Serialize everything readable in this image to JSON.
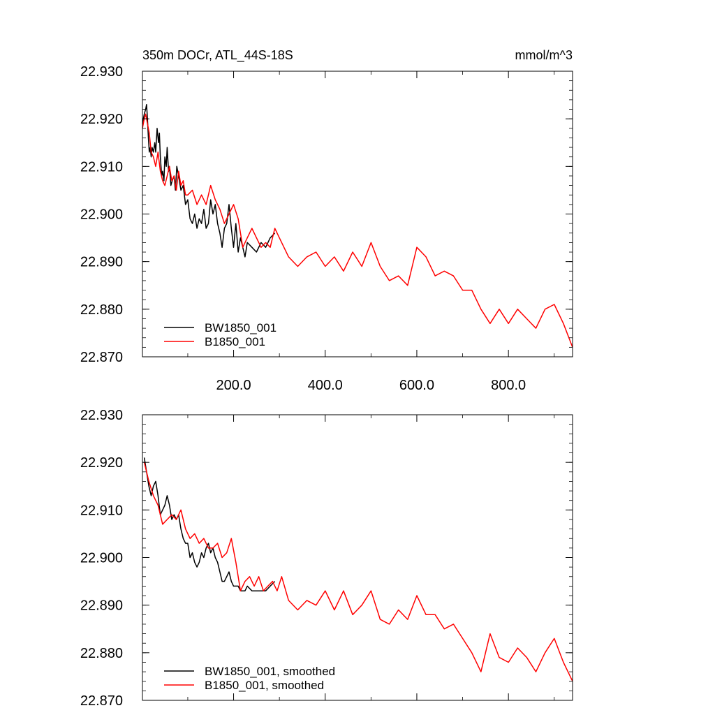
{
  "chart_data": [
    {
      "type": "line",
      "title_left": "350m DOCr, ATL_44S-18S",
      "title_right": "mmol/m^3",
      "xlim": [
        1,
        940
      ],
      "ylim": [
        22.87,
        22.93
      ],
      "yticks": [
        "22.930",
        "22.920",
        "22.910",
        "22.900",
        "22.890",
        "22.880",
        "22.870"
      ],
      "xticks": [
        "200.0",
        "400.0",
        "600.0",
        "800.0"
      ],
      "legend_position": "bottom-left",
      "series": [
        {
          "name": "BW1850_001",
          "color": "#000000",
          "x": [
            1,
            5,
            8,
            10,
            12,
            14,
            16,
            18,
            20,
            22,
            25,
            28,
            30,
            33,
            36,
            38,
            40,
            43,
            45,
            48,
            50,
            53,
            55,
            58,
            60,
            63,
            66,
            70,
            73,
            76,
            80,
            85,
            90,
            95,
            100,
            105,
            110,
            115,
            120,
            125,
            130,
            135,
            140,
            145,
            150,
            155,
            160,
            165,
            170,
            175,
            180,
            185,
            190,
            195,
            200,
            205,
            210,
            215,
            220,
            225,
            230,
            240,
            250,
            260,
            270,
            280,
            290
          ],
          "y": [
            22.919,
            22.921,
            22.922,
            22.923,
            22.92,
            22.916,
            22.913,
            22.914,
            22.912,
            22.914,
            22.913,
            22.915,
            22.913,
            22.918,
            22.915,
            22.917,
            22.912,
            22.908,
            22.909,
            22.907,
            22.912,
            22.91,
            22.914,
            22.909,
            22.91,
            22.906,
            22.907,
            22.908,
            22.905,
            22.91,
            22.908,
            22.905,
            22.906,
            22.902,
            22.903,
            22.899,
            22.898,
            22.9,
            22.897,
            22.899,
            22.898,
            22.901,
            22.897,
            22.898,
            22.903,
            22.9,
            22.902,
            22.898,
            22.896,
            22.893,
            22.897,
            22.898,
            22.902,
            22.897,
            22.893,
            22.898,
            22.892,
            22.895,
            22.893,
            22.891,
            22.894,
            22.893,
            22.892,
            22.894,
            22.893,
            22.895,
            22.896
          ]
        },
        {
          "name": "B1850_001",
          "color": "#ff0000",
          "x": [
            1,
            5,
            8,
            12,
            16,
            20,
            25,
            30,
            35,
            40,
            45,
            50,
            55,
            60,
            65,
            70,
            75,
            80,
            85,
            90,
            95,
            100,
            110,
            120,
            130,
            140,
            150,
            160,
            170,
            180,
            190,
            200,
            210,
            220,
            230,
            240,
            250,
            260,
            270,
            280,
            290,
            300,
            320,
            340,
            360,
            380,
            400,
            420,
            440,
            460,
            480,
            500,
            520,
            540,
            560,
            580,
            600,
            620,
            640,
            660,
            680,
            700,
            720,
            740,
            760,
            780,
            800,
            820,
            840,
            860,
            880,
            900,
            920,
            940
          ],
          "y": [
            22.918,
            22.92,
            22.921,
            22.919,
            22.917,
            22.913,
            22.912,
            22.91,
            22.913,
            22.909,
            22.907,
            22.906,
            22.908,
            22.91,
            22.907,
            22.908,
            22.905,
            22.909,
            22.906,
            22.907,
            22.904,
            22.904,
            22.905,
            22.902,
            22.904,
            22.902,
            22.906,
            22.903,
            22.901,
            22.898,
            22.9,
            22.902,
            22.899,
            22.893,
            22.895,
            22.897,
            22.895,
            22.893,
            22.894,
            22.893,
            22.897,
            22.895,
            22.891,
            22.889,
            22.891,
            22.892,
            22.889,
            22.891,
            22.888,
            22.892,
            22.889,
            22.894,
            22.889,
            22.886,
            22.887,
            22.885,
            22.893,
            22.891,
            22.887,
            22.888,
            22.887,
            22.884,
            22.884,
            22.88,
            22.877,
            22.88,
            22.877,
            22.88,
            22.878,
            22.876,
            22.88,
            22.881,
            22.877,
            22.872
          ]
        }
      ]
    },
    {
      "type": "line",
      "xlim": [
        1,
        940
      ],
      "ylim": [
        22.87,
        22.93
      ],
      "yticks": [
        "22.930",
        "22.920",
        "22.910",
        "22.900",
        "22.890",
        "22.880",
        "22.870"
      ],
      "legend_position": "bottom-left",
      "series": [
        {
          "name": "BW1850_001, smoothed",
          "color": "#000000",
          "x": [
            5,
            10,
            15,
            20,
            25,
            30,
            35,
            40,
            45,
            50,
            55,
            60,
            65,
            70,
            75,
            80,
            85,
            90,
            95,
            100,
            105,
            110,
            115,
            120,
            125,
            130,
            135,
            140,
            145,
            150,
            155,
            160,
            165,
            170,
            175,
            180,
            185,
            190,
            195,
            200,
            205,
            210,
            215,
            220,
            225,
            230,
            240,
            250,
            260,
            270,
            280,
            290
          ],
          "y": [
            22.921,
            22.918,
            22.915,
            22.913,
            22.915,
            22.916,
            22.913,
            22.909,
            22.91,
            22.911,
            22.913,
            22.911,
            22.908,
            22.909,
            22.908,
            22.909,
            22.906,
            22.904,
            22.903,
            22.903,
            22.9,
            22.901,
            22.899,
            22.898,
            22.899,
            22.901,
            22.9,
            22.902,
            22.903,
            22.901,
            22.902,
            22.9,
            22.899,
            22.897,
            22.895,
            22.895,
            22.896,
            22.897,
            22.895,
            22.894,
            22.894,
            22.894,
            22.893,
            22.893,
            22.893,
            22.894,
            22.893,
            22.893,
            22.893,
            22.893,
            22.894,
            22.895
          ]
        },
        {
          "name": "B1850_001, smoothed",
          "color": "#ff0000",
          "x": [
            5,
            15,
            25,
            35,
            45,
            55,
            65,
            75,
            85,
            95,
            105,
            115,
            125,
            135,
            145,
            155,
            165,
            175,
            185,
            195,
            205,
            215,
            225,
            235,
            245,
            255,
            265,
            275,
            285,
            295,
            305,
            320,
            340,
            360,
            380,
            400,
            420,
            440,
            460,
            480,
            500,
            520,
            540,
            560,
            580,
            600,
            620,
            640,
            660,
            680,
            700,
            720,
            740,
            760,
            780,
            800,
            820,
            840,
            860,
            880,
            900,
            920,
            940
          ],
          "y": [
            22.92,
            22.916,
            22.913,
            22.911,
            22.907,
            22.908,
            22.909,
            22.908,
            22.91,
            22.906,
            22.904,
            22.905,
            22.903,
            22.904,
            22.902,
            22.902,
            22.903,
            22.9,
            22.901,
            22.904,
            22.899,
            22.893,
            22.895,
            22.896,
            22.894,
            22.896,
            22.893,
            22.894,
            22.895,
            22.893,
            22.896,
            22.891,
            22.889,
            22.891,
            22.89,
            22.893,
            22.889,
            22.893,
            22.888,
            22.89,
            22.893,
            22.887,
            22.886,
            22.889,
            22.887,
            22.892,
            22.888,
            22.888,
            22.885,
            22.886,
            22.883,
            22.88,
            22.876,
            22.884,
            22.879,
            22.878,
            22.881,
            22.879,
            22.876,
            22.88,
            22.883,
            22.878,
            22.874
          ]
        }
      ]
    }
  ]
}
